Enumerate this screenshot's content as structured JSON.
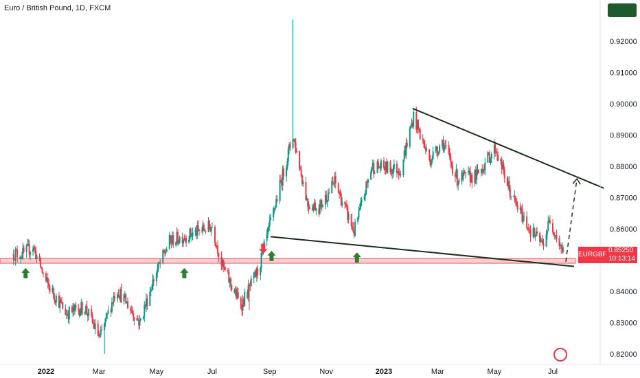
{
  "header": {
    "title": "Euro / British Pound, 1D, FXCM"
  },
  "price_tag": {
    "symbol": "EURGBP",
    "price": "0.85250",
    "countdown": "10:13:14"
  },
  "colors": {
    "up": "#089981",
    "down": "#f23645",
    "trendline": "#1b2e1b",
    "arrow_up": "#2e7d32",
    "arrow_down": "#f23645",
    "zone": "#f7c6cb"
  },
  "chart_data": {
    "type": "candlestick",
    "title": "Euro / British Pound, 1D, FXCM",
    "xlabel": "",
    "ylabel": "",
    "ylim": [
      0.819,
      0.9285
    ],
    "x_ticks": [
      "2022",
      "Mar",
      "May",
      "Jul",
      "Sep",
      "Nov",
      "2023",
      "Mar",
      "May",
      "Jul"
    ],
    "y_ticks": [
      "0.92000",
      "0.91000",
      "0.90000",
      "0.89000",
      "0.88000",
      "0.87000",
      "0.86000",
      "0.85000",
      "0.84000",
      "0.83000",
      "0.82000"
    ],
    "grid": false,
    "legend": "none",
    "last_price": 0.8525,
    "anchors": [
      {
        "date": "2021-11-29",
        "price": 0.852
      },
      {
        "date": "2021-12-10",
        "price": 0.852
      },
      {
        "date": "2021-12-20",
        "price": 0.8545
      },
      {
        "date": "2022-01-03",
        "price": 0.843
      },
      {
        "date": "2022-01-25",
        "price": 0.833
      },
      {
        "date": "2022-02-14",
        "price": 0.835
      },
      {
        "date": "2022-03-02",
        "price": 0.825
      },
      {
        "date": "2022-03-20",
        "price": 0.841
      },
      {
        "date": "2022-04-14",
        "price": 0.83
      },
      {
        "date": "2022-04-29",
        "price": 0.844
      },
      {
        "date": "2022-05-16",
        "price": 0.856
      },
      {
        "date": "2022-06-15",
        "price": 0.859
      },
      {
        "date": "2022-07-01",
        "price": 0.861
      },
      {
        "date": "2022-07-12",
        "price": 0.848
      },
      {
        "date": "2022-08-01",
        "price": 0.8355
      },
      {
        "date": "2022-08-20",
        "price": 0.847
      },
      {
        "date": "2022-09-02",
        "price": 0.862
      },
      {
        "date": "2022-09-26",
        "price": 0.89
      },
      {
        "date": "2022-10-12",
        "price": 0.868
      },
      {
        "date": "2022-10-25",
        "price": 0.867
      },
      {
        "date": "2022-11-10",
        "price": 0.875
      },
      {
        "date": "2022-12-01",
        "price": 0.859
      },
      {
        "date": "2022-12-20",
        "price": 0.88
      },
      {
        "date": "2023-01-20",
        "price": 0.879
      },
      {
        "date": "2023-02-03",
        "price": 0.896
      },
      {
        "date": "2023-02-20",
        "price": 0.882
      },
      {
        "date": "2023-03-06",
        "price": 0.888
      },
      {
        "date": "2023-03-22",
        "price": 0.876
      },
      {
        "date": "2023-04-12",
        "price": 0.877
      },
      {
        "date": "2023-05-02",
        "price": 0.886
      },
      {
        "date": "2023-05-20",
        "price": 0.87
      },
      {
        "date": "2023-06-10",
        "price": 0.859
      },
      {
        "date": "2023-06-22",
        "price": 0.855
      },
      {
        "date": "2023-06-30",
        "price": 0.863
      },
      {
        "date": "2023-07-14",
        "price": 0.8525
      }
    ],
    "spikes": [
      {
        "date": "2022-09-26",
        "high": 0.927
      },
      {
        "date": "2022-10-01",
        "high": 0.907
      }
    ],
    "lows": [
      {
        "date": "2022-03-07",
        "low": 0.82
      },
      {
        "date": "2022-08-10",
        "low": 0.834
      }
    ],
    "annotations": {
      "support_zone": [
        0.849,
        0.8505
      ],
      "lower_trendline": [
        {
          "date": "2022-09-02",
          "price": 0.8575
        },
        {
          "date": "2023-07-26",
          "price": 0.848
        }
      ],
      "upper_trendline": [
        {
          "date": "2023-02-02",
          "price": 0.8985
        },
        {
          "date": "2023-08-27",
          "price": 0.873
        }
      ],
      "projection": [
        {
          "date": "2023-07-17",
          "price": 0.8495
        },
        {
          "date": "2023-07-29",
          "price": 0.876
        }
      ],
      "arrows_up": [
        {
          "date": "2021-12-12",
          "price": 0.8475
        },
        {
          "date": "2022-06-01",
          "price": 0.8475
        },
        {
          "date": "2022-09-03",
          "price": 0.853
        },
        {
          "date": "2022-12-04",
          "price": 0.8525
        }
      ],
      "arrows_down": [
        {
          "date": "2022-08-25",
          "price": 0.852
        }
      ]
    }
  }
}
